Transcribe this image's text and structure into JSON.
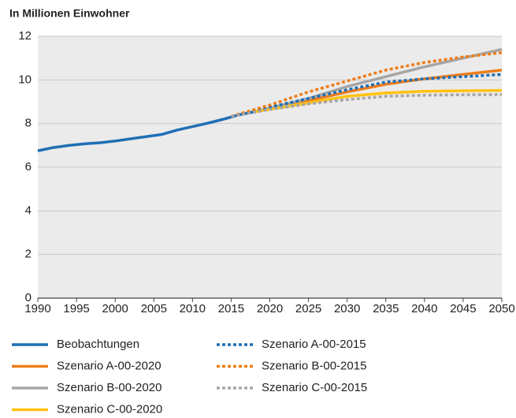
{
  "chart_data": {
    "type": "line",
    "title": "In Millionen Einwohner",
    "xlim": [
      1990,
      2050
    ],
    "xticks": [
      1990,
      1995,
      2000,
      2005,
      2010,
      2015,
      2020,
      2025,
      2030,
      2035,
      2040,
      2045,
      2050
    ],
    "ylim": [
      0,
      12
    ],
    "yticks": [
      0,
      2,
      4,
      6,
      8,
      10,
      12
    ],
    "grid": true,
    "series": [
      {
        "name": "Beobachtungen",
        "color": "#1f6fb4",
        "style": "solid",
        "x": [
          1990,
          1992,
          1994,
          1996,
          1998,
          2000,
          2002,
          2004,
          2006,
          2008,
          2010,
          2012,
          2014,
          2016,
          2018
        ],
        "values": [
          6.75,
          6.9,
          7.0,
          7.07,
          7.12,
          7.2,
          7.3,
          7.4,
          7.5,
          7.7,
          7.86,
          8.02,
          8.2,
          8.4,
          8.54
        ]
      },
      {
        "name": "Szenario A-00-2020",
        "color": "#f07d1a",
        "style": "solid",
        "x": [
          2018,
          2020,
          2025,
          2030,
          2035,
          2040,
          2045,
          2050
        ],
        "values": [
          8.54,
          8.7,
          9.05,
          9.45,
          9.8,
          10.05,
          10.25,
          10.45
        ]
      },
      {
        "name": "Szenario B-00-2020",
        "color": "#a6a6a6",
        "style": "solid",
        "x": [
          2018,
          2020,
          2025,
          2030,
          2035,
          2040,
          2045,
          2050
        ],
        "values": [
          8.54,
          8.7,
          9.15,
          9.7,
          10.15,
          10.6,
          11.0,
          11.4
        ]
      },
      {
        "name": "Szenario C-00-2020",
        "color": "#ffc20e",
        "style": "solid",
        "x": [
          2018,
          2020,
          2025,
          2030,
          2035,
          2040,
          2045,
          2050
        ],
        "values": [
          8.54,
          8.65,
          8.95,
          9.25,
          9.4,
          9.48,
          9.5,
          9.52
        ]
      },
      {
        "name": "Szenario A-00-2015",
        "color": "#1f6fb4",
        "style": "dotted",
        "x": [
          2015,
          2020,
          2025,
          2030,
          2035,
          2040,
          2045,
          2050
        ],
        "values": [
          8.33,
          8.75,
          9.15,
          9.55,
          9.9,
          10.05,
          10.15,
          10.25
        ]
      },
      {
        "name": "Szenario B-00-2015",
        "color": "#f07d1a",
        "style": "dotted",
        "x": [
          2015,
          2020,
          2025,
          2030,
          2035,
          2040,
          2045,
          2050
        ],
        "values": [
          8.33,
          8.85,
          9.45,
          9.95,
          10.45,
          10.8,
          11.05,
          11.25
        ]
      },
      {
        "name": "Szenario C-00-2015",
        "color": "#a6a6a6",
        "style": "dotted",
        "x": [
          2015,
          2020,
          2025,
          2030,
          2035,
          2040,
          2045,
          2050
        ],
        "values": [
          8.33,
          8.65,
          8.9,
          9.1,
          9.25,
          9.3,
          9.32,
          9.33
        ]
      }
    ]
  }
}
